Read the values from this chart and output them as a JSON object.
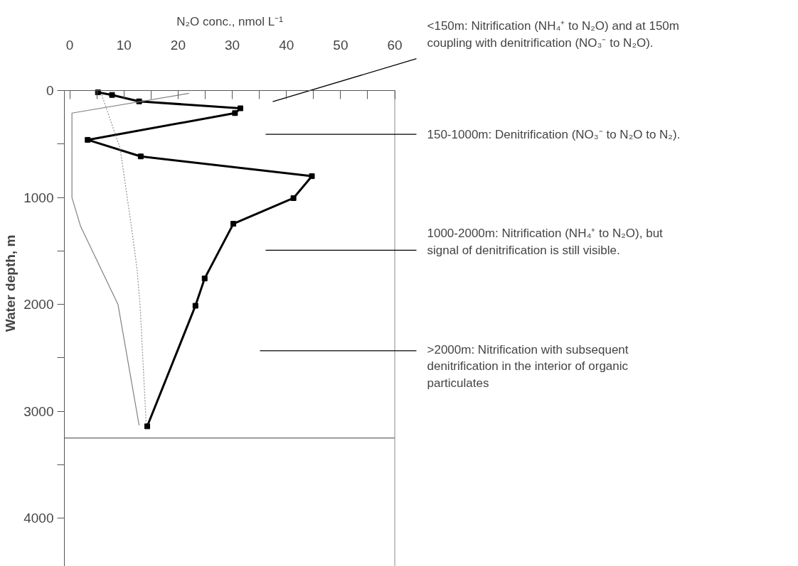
{
  "chart_data": {
    "type": "line",
    "xlabel": "N₂O conc., nmol L⁻¹",
    "ylabel": "Water depth, m",
    "xlim": [
      -1,
      60
    ],
    "xticks": [
      0,
      10,
      20,
      30,
      40,
      50,
      60
    ],
    "ylim": [
      4450,
      0
    ],
    "yticks": [
      0,
      1000,
      2000,
      3000,
      4000
    ],
    "grid": false,
    "series": [
      {
        "color": "#000000",
        "marker": "square",
        "line_style": "solid",
        "x": [
          5.2,
          7.8,
          12.8,
          31.5,
          30.5,
          3.3,
          13.1,
          44.7,
          41.3,
          30.2,
          24.9,
          23.2,
          14.3
        ],
        "values": [
          15,
          40,
          100,
          165,
          210,
          460,
          615,
          800,
          1005,
          1245,
          1757,
          2012,
          3140
        ]
      },
      {
        "color": "#808080",
        "marker": "none",
        "line_style": "solid",
        "x": [
          22,
          0.4,
          0.4,
          2,
          8.9,
          12.8
        ],
        "values": [
          25,
          210,
          1000,
          1270,
          2000,
          3130
        ]
      },
      {
        "color": "#909090",
        "marker": "none",
        "line_style": "dotted",
        "x": [
          5.9,
          9.3,
          11.3,
          12.4,
          13.0,
          14.1
        ],
        "values": [
          40,
          540,
          1245,
          1660,
          2020,
          3115
        ]
      }
    ],
    "ref_lines": [
      {
        "axis": "y",
        "value": 3250,
        "color": "#999999"
      }
    ],
    "annotations": [
      "<150m: Nitrification (NH₄⁺ to N₂O) and at 150m coupling with denitrification (NO₃⁻ to N₂O).",
      "150-1000m: Denitrification (NO₃⁻ to N₂O to N₂).",
      "1000-2000m: Nitrification (NH₄⁺ to N₂O), but signal of denitrification is still visible.",
      ">2000m: Nitrification with subsequent denitrification in the interior of organic particulates"
    ]
  }
}
